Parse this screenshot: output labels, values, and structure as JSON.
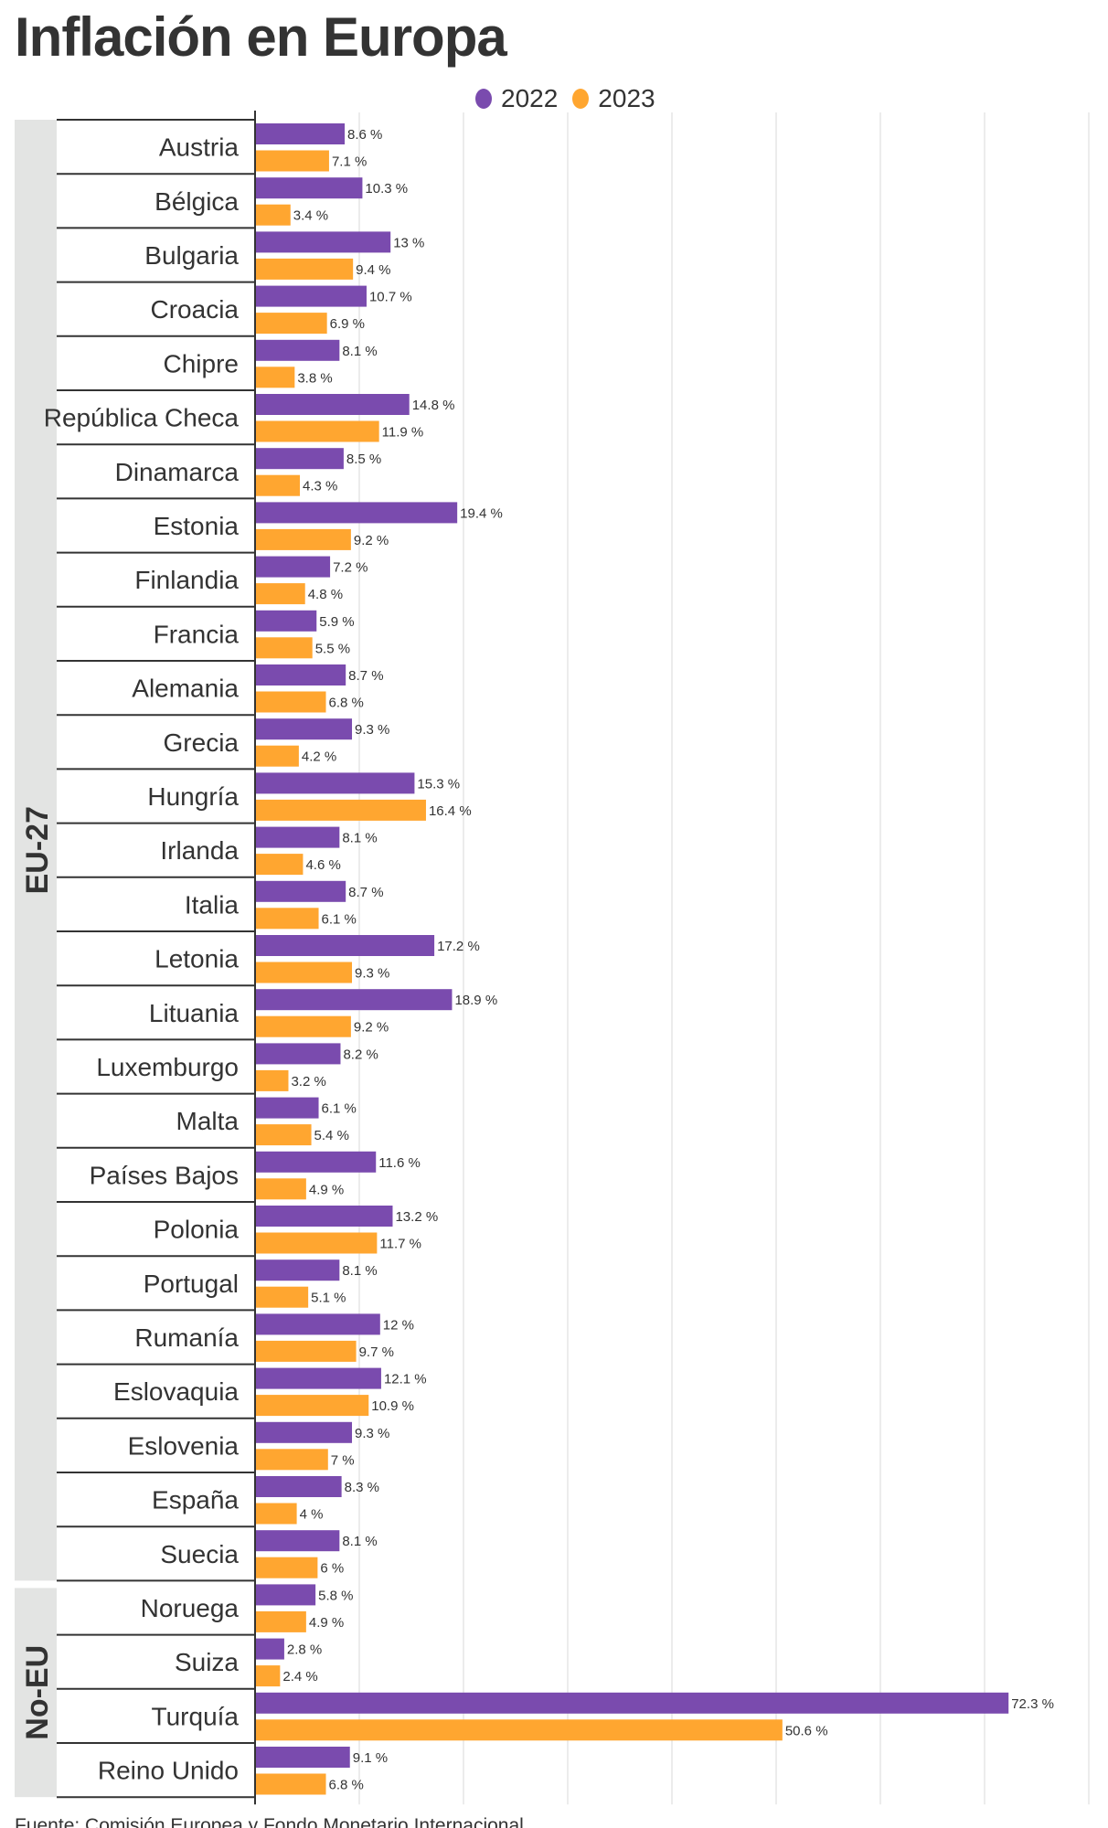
{
  "title": "Inflación en Europa",
  "source": "Fuente: Comisión Europea y Fondo Monetario Internacional",
  "colors": {
    "2022": "#7a4bae",
    "2023": "#ffa630"
  },
  "chart_data": {
    "type": "bar",
    "orientation": "horizontal",
    "title": "Inflación en Europa",
    "legend": [
      "2022",
      "2023"
    ],
    "legend_position": "top-center",
    "xlim": [
      0,
      80
    ],
    "grid": true,
    "value_suffix": " %",
    "groups": [
      {
        "name": "EU-27",
        "start": 0,
        "count": 27
      },
      {
        "name": "No-EU",
        "start": 27,
        "count": 4
      }
    ],
    "categories": [
      "Austria",
      "Bélgica",
      "Bulgaria",
      "Croacia",
      "Chipre",
      "República Checa",
      "Dinamarca",
      "Estonia",
      "Finlandia",
      "Francia",
      "Alemania",
      "Grecia",
      "Hungría",
      "Irlanda",
      "Italia",
      "Letonia",
      "Lituania",
      "Luxemburgo",
      "Malta",
      "Países Bajos",
      "Polonia",
      "Portugal",
      "Rumanía",
      "Eslovaquia",
      "Eslovenia",
      "España",
      "Suecia",
      "Noruega",
      "Suiza",
      "Turquía",
      "Reino Unido"
    ],
    "series": [
      {
        "name": "2022",
        "values": [
          8.6,
          10.3,
          13,
          10.7,
          8.1,
          14.8,
          8.5,
          19.4,
          7.2,
          5.9,
          8.7,
          9.3,
          15.3,
          8.1,
          8.7,
          17.2,
          18.9,
          8.2,
          6.1,
          11.6,
          13.2,
          8.1,
          12,
          12.1,
          9.3,
          8.3,
          8.1,
          5.8,
          2.8,
          72.3,
          9.1
        ]
      },
      {
        "name": "2023",
        "values": [
          7.1,
          3.4,
          9.4,
          6.9,
          3.8,
          11.9,
          4.3,
          9.2,
          4.8,
          5.5,
          6.8,
          4.2,
          16.4,
          4.6,
          6.1,
          9.3,
          9.2,
          3.2,
          5.4,
          4.9,
          11.7,
          5.1,
          9.7,
          10.9,
          7,
          4,
          6,
          4.9,
          2.4,
          50.6,
          6.8
        ]
      }
    ]
  }
}
